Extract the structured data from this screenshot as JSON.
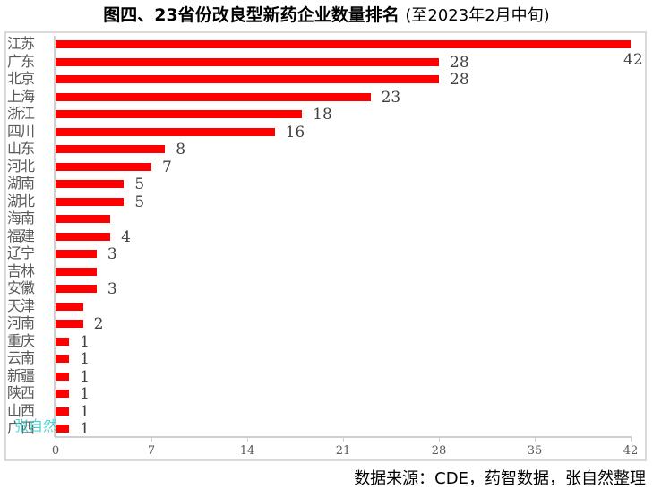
{
  "chart_data": {
    "type": "bar",
    "orientation": "horizontal",
    "title": "图四、23省份改良型新药企业数量排名",
    "subtitle": "(至2023年2月中旬)",
    "categories": [
      "江苏",
      "广东",
      "北京",
      "上海",
      "浙江",
      "四川",
      "山东",
      "河北",
      "湖南",
      "湖北",
      "海南",
      "福建",
      "辽宁",
      "吉林",
      "安徽",
      "天津",
      "河南",
      "重庆",
      "云南",
      "新疆",
      "陕西",
      "山西",
      "广西"
    ],
    "values": [
      42,
      28,
      28,
      23,
      18,
      16,
      8,
      7,
      5,
      5,
      4,
      4,
      3,
      3,
      3,
      2,
      2,
      1,
      1,
      1,
      1,
      1,
      1
    ],
    "data_labels": [
      "42",
      "28",
      "28",
      "23",
      "18",
      "16",
      "8",
      "7",
      "5",
      "5",
      "",
      "4",
      "3",
      "",
      "3",
      "",
      "2",
      "1",
      "1",
      "1",
      "1",
      "1",
      "1"
    ],
    "xlabel": "",
    "ylabel": "",
    "xlim": [
      0,
      42
    ],
    "xticks": [
      "0",
      "7",
      "14",
      "21",
      "28",
      "35",
      "42"
    ],
    "grid": false,
    "legend": null,
    "bar_color": "#ff0000"
  },
  "watermark": "张自然",
  "source": "数据来源：CDE，药智数据，张自然整理"
}
